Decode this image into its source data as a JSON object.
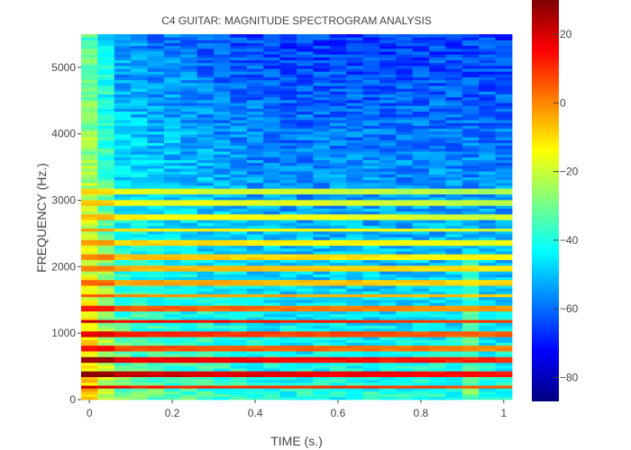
{
  "chart_data": {
    "type": "heatmap",
    "title": "C4 GUITAR: MAGNITUDE SPECTROGRAM ANALYSIS",
    "xlabel": "TIME (s.)",
    "ylabel": "FREQUENCY (Hz.)",
    "xlim": [
      -0.02,
      1.02
    ],
    "ylim": [
      0,
      5500
    ],
    "x_ticks": [
      0,
      0.2,
      0.4,
      0.6,
      0.8,
      1
    ],
    "x_tick_labels": [
      "0",
      "0.2",
      "0.4",
      "0.6",
      "0.8",
      "1"
    ],
    "y_ticks": [
      0,
      1000,
      2000,
      3000,
      4000,
      5000
    ],
    "y_tick_labels": [
      "0",
      "1000",
      "2000",
      "3000",
      "4000",
      "5000"
    ],
    "colorscale": "jet",
    "colorbar": {
      "range": [
        -87,
        30
      ],
      "ticks": [
        20,
        0,
        -20,
        -40,
        -60,
        -80
      ],
      "tick_labels": [
        "20",
        "0",
        "−20",
        "−40",
        "−60",
        "−80"
      ]
    },
    "time_bins": 26,
    "frequency_bins": 128,
    "time_start": 0,
    "time_step": 0.04,
    "frequency_max": 5500,
    "harmonics_hz": [
      195,
      400,
      590,
      780,
      985,
      1180,
      1375,
      1570,
      1770,
      1965,
      2160,
      2360,
      2555,
      2750,
      2950,
      3145
    ],
    "harmonic_peak_db": [
      20,
      28,
      25,
      14,
      18,
      22,
      12,
      6,
      4,
      2,
      0,
      -2,
      -4,
      -6,
      -8,
      -10
    ]
  }
}
